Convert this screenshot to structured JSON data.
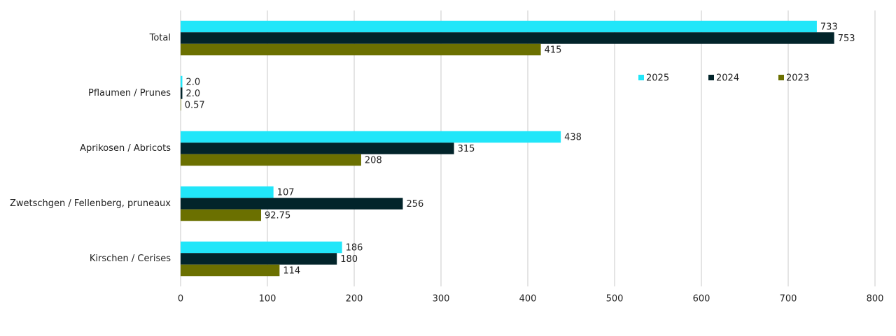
{
  "chart_data": {
    "type": "hbar",
    "categories": [
      "Total",
      "Pflaumen / Prunes",
      "Aprikosen / Abricots",
      "Zwetschgen / Fellenberg, pruneaux",
      "Kirschen / Cerises"
    ],
    "series": [
      {
        "name": "2025",
        "color": "#21e6f9",
        "values": [
          733,
          2,
          438,
          107,
          186
        ],
        "value_labels": [
          "733",
          "2.0",
          "438",
          "107",
          "186"
        ]
      },
      {
        "name": "2024",
        "color": "#02242a",
        "values": [
          753,
          2,
          315,
          256,
          180
        ],
        "value_labels": [
          "753",
          "2.0",
          "315",
          "256",
          "180"
        ]
      },
      {
        "name": "2023",
        "color": "#6b7000",
        "values": [
          415,
          0.57,
          208,
          92.75,
          114
        ],
        "value_labels": [
          "415",
          "0.57",
          "208",
          "92.75",
          "114"
        ]
      }
    ],
    "xlim": [
      0,
      800
    ],
    "xticks": [
      0,
      100,
      200,
      300,
      400,
      500,
      600,
      700,
      800
    ],
    "grid": true,
    "legend": "top-right"
  }
}
